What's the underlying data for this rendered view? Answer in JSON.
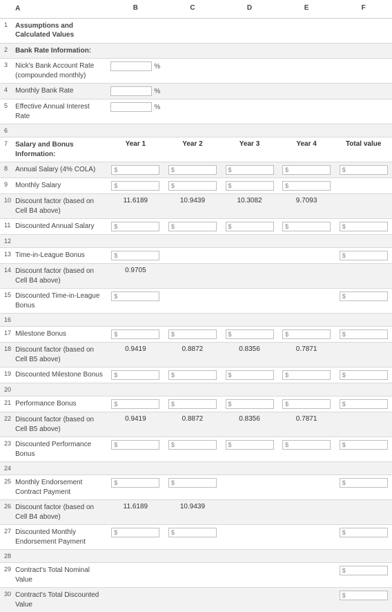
{
  "columns": [
    "A",
    "B",
    "C",
    "D",
    "E",
    "F"
  ],
  "rows": {
    "r1": {
      "n": "1",
      "a": "Assumptions and Calculated Values",
      "bold": true
    },
    "r2": {
      "n": "2",
      "a": "Bank Rate Information:",
      "bold": true,
      "shade": true
    },
    "r3": {
      "n": "3",
      "a": "Nick's Bank Account Rate (compounded monthly)",
      "b_input": true,
      "b_suffix": "%"
    },
    "r4": {
      "n": "4",
      "a": "Monthly Bank Rate",
      "shade": true,
      "b_input": true,
      "b_suffix": "%"
    },
    "r5": {
      "n": "5",
      "a": "Effective Annual Interest Rate",
      "b_input": true,
      "b_suffix": "%"
    },
    "r6": {
      "n": "6",
      "a": "",
      "shade": true
    },
    "r7": {
      "n": "7",
      "a": "Salary and Bonus Information:",
      "bold": true,
      "b": "Year 1",
      "c": "Year 2",
      "d": "Year 3",
      "e": "Year 4",
      "f": "Total value",
      "headrow": true
    },
    "r8": {
      "n": "8",
      "a": "Annual Salary (4% COLA)",
      "shade": true,
      "b_dollar": true,
      "c_dollar": true,
      "d_dollar": true,
      "e_dollar": true,
      "f_dollar": true
    },
    "r9": {
      "n": "9",
      "a": "Monthly Salary",
      "b_dollar": true,
      "c_dollar": true,
      "d_dollar": true,
      "e_dollar": true
    },
    "r10": {
      "n": "10",
      "a": "Discount factor (based on Cell B4 above)",
      "shade": true,
      "b": "11.6189",
      "c": "10.9439",
      "d": "10.3082",
      "e": "9.7093"
    },
    "r11": {
      "n": "11",
      "a": "Discounted Annual Salary",
      "b_dollar": true,
      "c_dollar": true,
      "d_dollar": true,
      "e_dollar": true,
      "f_dollar": true
    },
    "r12": {
      "n": "12",
      "a": "",
      "shade": true
    },
    "r13": {
      "n": "13",
      "a": "Time-in-League Bonus",
      "b_dollar": true,
      "f_dollar": true
    },
    "r14": {
      "n": "14",
      "a": "Discount factor (based on Cell B4 above)",
      "shade": true,
      "b": "0.9705"
    },
    "r15": {
      "n": "15",
      "a": "Discounted Time-in-League Bonus",
      "b_dollar": true,
      "f_dollar": true
    },
    "r16": {
      "n": "16",
      "a": "",
      "shade": true
    },
    "r17": {
      "n": "17",
      "a": "Milestone Bonus",
      "b_dollar": true,
      "c_dollar": true,
      "d_dollar": true,
      "e_dollar": true,
      "f_dollar": true
    },
    "r18": {
      "n": "18",
      "a": "Discount factor (based on Cell B5 above)",
      "shade": true,
      "b": "0.9419",
      "c": "0.8872",
      "d": "0.8356",
      "e": "0.7871"
    },
    "r19": {
      "n": "19",
      "a": "Discounted Milestone Bonus",
      "b_dollar": true,
      "c_dollar": true,
      "d_dollar": true,
      "e_dollar": true,
      "f_dollar": true
    },
    "r20": {
      "n": "20",
      "a": "",
      "shade": true
    },
    "r21": {
      "n": "21",
      "a": "Performance Bonus",
      "b_dollar": true,
      "c_dollar": true,
      "d_dollar": true,
      "e_dollar": true,
      "f_dollar": true
    },
    "r22": {
      "n": "22",
      "a": "Discount factor (based on Cell B5 above)",
      "shade": true,
      "b": "0.9419",
      "c": "0.8872",
      "d": "0.8356",
      "e": "0.7871"
    },
    "r23": {
      "n": "23",
      "a": "Discounted Performance Bonus",
      "b_dollar": true,
      "c_dollar": true,
      "d_dollar": true,
      "e_dollar": true,
      "f_dollar": true
    },
    "r24": {
      "n": "24",
      "a": "",
      "shade": true
    },
    "r25": {
      "n": "25",
      "a": "Monthly Endorsement Contract Payment",
      "b_dollar": true,
      "c_dollar": true,
      "f_dollar": true
    },
    "r26": {
      "n": "26",
      "a": "Discount factor (based on Cell B4 above)",
      "shade": true,
      "b": "11.6189",
      "c": "10.9439"
    },
    "r27": {
      "n": "27",
      "a": "Discounted Monthly Endorsement Payment",
      "b_dollar": true,
      "c_dollar": true,
      "f_dollar": true
    },
    "r28": {
      "n": "28",
      "a": "",
      "shade": true
    },
    "r29": {
      "n": "29",
      "a": "Contract's Total Nominal Value",
      "f_dollar": true
    },
    "r30": {
      "n": "30",
      "a": "Contract's Total Discounted Value",
      "shade": true,
      "f_dollar": true
    }
  },
  "dollar_symbol": "$",
  "colors": {
    "border": "#d9d9d9",
    "shade": "#f2f2f2",
    "input_border": "#bdbdbd",
    "text": "#333"
  }
}
